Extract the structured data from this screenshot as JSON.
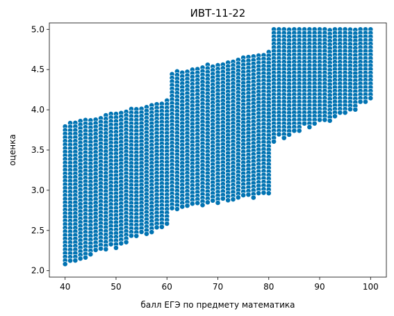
{
  "chart_data": {
    "type": "scatter",
    "title": "ИВТ-11-22",
    "xlabel": "балл ЕГЭ по предмету математика",
    "ylabel": "оценка",
    "xlim": [
      36.9,
      103.1
    ],
    "ylim": [
      1.92,
      5.08
    ],
    "x_ticks": [
      40,
      50,
      60,
      70,
      80,
      90,
      100
    ],
    "x_tick_labels": [
      "40",
      "50",
      "60",
      "70",
      "80",
      "90",
      "100"
    ],
    "y_ticks": [
      2.0,
      2.5,
      3.0,
      3.5,
      4.0,
      4.5,
      5.0
    ],
    "y_tick_labels": [
      "2.0",
      "2.5",
      "3.0",
      "3.5",
      "4.0",
      "4.5",
      "5.0"
    ],
    "grid": false,
    "legend": "none",
    "point_color": "#0173b2",
    "point_edge_color": "#ffffff",
    "series": [
      {
        "x_range": [
          40,
          60
        ],
        "y_lower": [
          2.05,
          2.55
        ],
        "y_upper": [
          3.8,
          4.1
        ]
      },
      {
        "x_range": [
          61,
          80
        ],
        "y_lower": [
          2.75,
          2.95
        ],
        "y_upper": [
          4.45,
          4.7
        ]
      },
      {
        "x_range": [
          81,
          100
        ],
        "y_lower": [
          3.6,
          4.1
        ],
        "y_upper": [
          5.0,
          5.0
        ]
      }
    ]
  }
}
